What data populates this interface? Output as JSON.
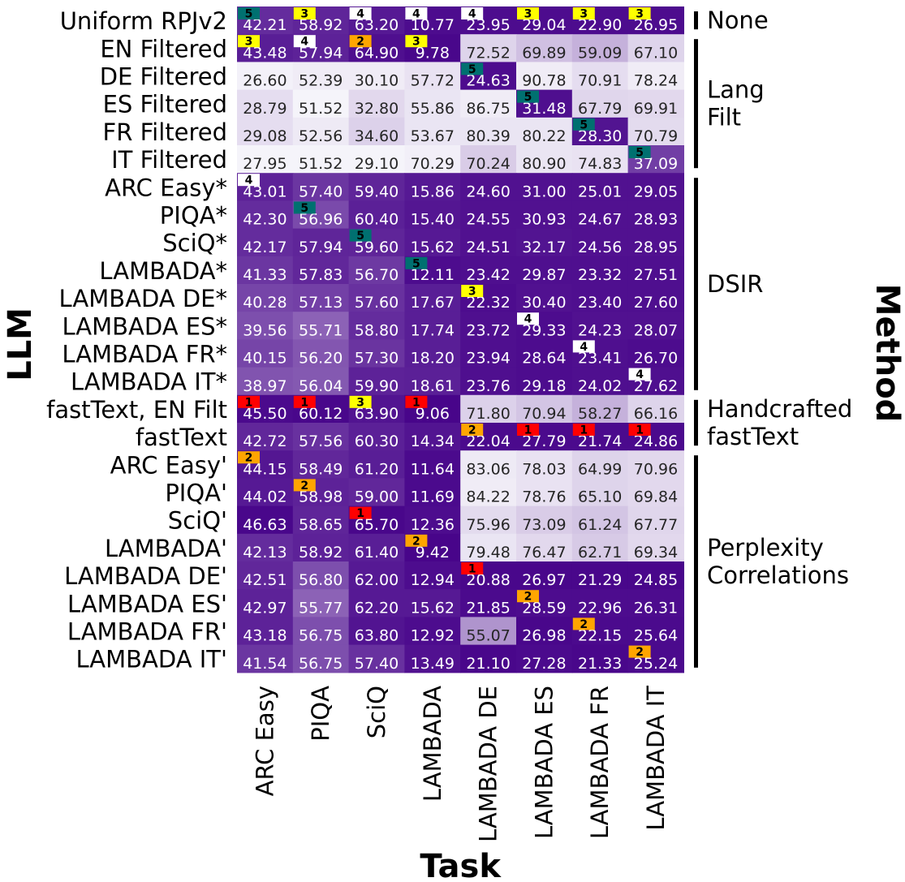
{
  "chart_data": {
    "type": "heatmap",
    "xlabel": "Task",
    "ylabel": "LLM",
    "group_axis_label": "Method",
    "columns": [
      "ARC Easy",
      "PIQA",
      "SciQ",
      "LAMBADA",
      "LAMBADA DE",
      "LAMBADA ES",
      "LAMBADA FR",
      "LAMBADA IT"
    ],
    "rows": [
      {
        "label": "Uniform RPJv2",
        "values": [
          42.21,
          58.92,
          63.2,
          10.77,
          23.95,
          29.04,
          22.9,
          26.95
        ],
        "shade": [
          0.18,
          0.15,
          0.1,
          0.05,
          0.05,
          0.05,
          0.05,
          0.05
        ],
        "ranks": [
          5,
          3,
          4,
          4,
          4,
          3,
          3,
          3
        ]
      },
      {
        "label": "EN Filtered",
        "values": [
          43.48,
          57.94,
          64.9,
          9.78,
          72.52,
          69.89,
          59.09,
          67.1
        ],
        "shade": [
          0.12,
          0.14,
          0.06,
          0.03,
          0.86,
          0.78,
          0.72,
          0.86
        ],
        "ranks": [
          3,
          4,
          2,
          3,
          null,
          null,
          null,
          null
        ]
      },
      {
        "label": "DE Filtered",
        "values": [
          26.6,
          52.39,
          30.1,
          57.72,
          24.63,
          90.78,
          70.91,
          78.24
        ],
        "shade": [
          0.98,
          0.96,
          0.96,
          0.92,
          0.05,
          0.96,
          0.9,
          0.96
        ],
        "ranks": [
          null,
          null,
          null,
          null,
          5,
          null,
          null,
          null
        ]
      },
      {
        "label": "ES Filtered",
        "values": [
          28.79,
          51.52,
          32.8,
          55.86,
          86.75,
          31.48,
          67.79,
          69.91
        ],
        "shade": [
          0.9,
          0.99,
          0.88,
          0.93,
          0.96,
          0.06,
          0.87,
          0.88
        ],
        "ranks": [
          null,
          null,
          null,
          null,
          null,
          5,
          null,
          null
        ]
      },
      {
        "label": "FR Filtered",
        "values": [
          29.08,
          52.56,
          34.6,
          53.67,
          80.39,
          80.22,
          28.3,
          70.79
        ],
        "shade": [
          0.9,
          0.95,
          0.85,
          0.93,
          0.93,
          0.93,
          0.08,
          0.89
        ],
        "ranks": [
          null,
          null,
          null,
          null,
          null,
          null,
          5,
          null
        ]
      },
      {
        "label": "IT Filtered",
        "values": [
          27.95,
          51.52,
          29.1,
          70.29,
          70.24,
          80.9,
          74.83,
          37.09
        ],
        "shade": [
          0.99,
          0.99,
          0.99,
          0.97,
          0.83,
          0.93,
          0.92,
          0.25
        ],
        "ranks": [
          null,
          null,
          null,
          null,
          null,
          null,
          null,
          5
        ]
      },
      {
        "label": "ARC Easy*",
        "values": [
          43.01,
          57.4,
          59.4,
          15.86,
          24.6,
          31.0,
          25.01,
          29.05
        ],
        "shade": [
          0.14,
          0.22,
          0.15,
          0.1,
          0.07,
          0.07,
          0.07,
          0.07
        ],
        "ranks": [
          4,
          null,
          null,
          null,
          null,
          null,
          null,
          null
        ]
      },
      {
        "label": "PIQA*",
        "values": [
          42.3,
          56.96,
          60.4,
          15.4,
          24.55,
          30.93,
          24.67,
          28.93
        ],
        "shade": [
          0.18,
          0.3,
          0.13,
          0.09,
          0.07,
          0.07,
          0.07,
          0.07
        ],
        "ranks": [
          null,
          5,
          null,
          null,
          null,
          null,
          null,
          null
        ]
      },
      {
        "label": "SciQ*",
        "values": [
          42.17,
          57.94,
          59.6,
          15.62,
          24.51,
          32.17,
          24.56,
          28.95
        ],
        "shade": [
          0.18,
          0.15,
          0.15,
          0.1,
          0.07,
          0.08,
          0.07,
          0.07
        ],
        "ranks": [
          null,
          null,
          5,
          null,
          null,
          null,
          null,
          null
        ]
      },
      {
        "label": "LAMBADA*",
        "values": [
          41.33,
          57.83,
          56.7,
          12.11,
          23.42,
          29.87,
          23.32,
          27.51
        ],
        "shade": [
          0.22,
          0.16,
          0.23,
          0.05,
          0.06,
          0.06,
          0.06,
          0.06
        ],
        "ranks": [
          null,
          null,
          null,
          5,
          null,
          null,
          null,
          null
        ]
      },
      {
        "label": "LAMBADA DE*",
        "values": [
          40.28,
          57.13,
          57.6,
          17.67,
          22.32,
          30.4,
          23.4,
          27.6
        ],
        "shade": [
          0.28,
          0.26,
          0.2,
          0.12,
          0.05,
          0.07,
          0.06,
          0.06
        ],
        "ranks": [
          null,
          null,
          null,
          null,
          3,
          null,
          null,
          null
        ]
      },
      {
        "label": "LAMBADA ES*",
        "values": [
          39.56,
          55.71,
          58.8,
          17.74,
          23.72,
          29.33,
          24.23,
          28.07
        ],
        "shade": [
          0.32,
          0.4,
          0.18,
          0.12,
          0.06,
          0.05,
          0.07,
          0.07
        ],
        "ranks": [
          null,
          null,
          null,
          null,
          null,
          4,
          null,
          null
        ]
      },
      {
        "label": "LAMBADA FR*",
        "values": [
          40.15,
          56.2,
          57.3,
          18.2,
          23.94,
          28.64,
          23.41,
          26.7
        ],
        "shade": [
          0.28,
          0.35,
          0.21,
          0.12,
          0.06,
          0.05,
          0.06,
          0.05
        ],
        "ranks": [
          null,
          null,
          null,
          null,
          null,
          null,
          4,
          null
        ]
      },
      {
        "label": "LAMBADA IT*",
        "values": [
          38.97,
          56.04,
          59.9,
          18.61,
          23.76,
          29.18,
          24.02,
          27.62
        ],
        "shade": [
          0.34,
          0.36,
          0.14,
          0.13,
          0.06,
          0.05,
          0.06,
          0.06
        ],
        "ranks": [
          null,
          null,
          null,
          null,
          null,
          null,
          null,
          4
        ]
      },
      {
        "label": "fastText, EN Filt",
        "values": [
          45.5,
          60.12,
          63.9,
          9.06,
          71.8,
          70.94,
          58.27,
          66.16
        ],
        "shade": [
          0.04,
          0.03,
          0.08,
          0.02,
          0.85,
          0.8,
          0.72,
          0.86
        ],
        "ranks": [
          1,
          1,
          3,
          1,
          null,
          null,
          null,
          null
        ]
      },
      {
        "label": "fastText",
        "values": [
          42.72,
          57.56,
          60.3,
          14.34,
          22.04,
          27.79,
          21.74,
          24.86
        ],
        "shade": [
          0.16,
          0.2,
          0.13,
          0.08,
          0.04,
          0.04,
          0.04,
          0.04
        ],
        "ranks": [
          null,
          null,
          null,
          null,
          2,
          1,
          1,
          1
        ]
      },
      {
        "label": "ARC Easy'",
        "values": [
          44.15,
          58.49,
          61.2,
          11.64,
          83.06,
          78.03,
          64.99,
          70.96
        ],
        "shade": [
          0.09,
          0.16,
          0.12,
          0.04,
          0.95,
          0.92,
          0.86,
          0.88
        ],
        "ranks": [
          2,
          null,
          null,
          null,
          null,
          null,
          null,
          null
        ]
      },
      {
        "label": "PIQA'",
        "values": [
          44.02,
          58.98,
          59.0,
          11.69,
          84.22,
          78.76,
          65.1,
          69.84
        ],
        "shade": [
          0.1,
          0.14,
          0.16,
          0.04,
          0.96,
          0.92,
          0.86,
          0.88
        ],
        "ranks": [
          null,
          2,
          null,
          null,
          null,
          null,
          null,
          null
        ]
      },
      {
        "label": "SciQ'",
        "values": [
          46.63,
          58.65,
          65.7,
          12.36,
          75.96,
          73.09,
          61.24,
          67.77
        ],
        "shade": [
          0.03,
          0.15,
          0.03,
          0.05,
          0.89,
          0.83,
          0.8,
          0.87
        ],
        "ranks": [
          null,
          null,
          1,
          null,
          null,
          null,
          null,
          null
        ]
      },
      {
        "label": "LAMBADA'",
        "values": [
          42.13,
          58.92,
          61.4,
          9.42,
          79.48,
          76.47,
          62.71,
          69.34
        ],
        "shade": [
          0.18,
          0.14,
          0.12,
          0.02,
          0.93,
          0.88,
          0.82,
          0.88
        ],
        "ranks": [
          null,
          null,
          null,
          2,
          null,
          null,
          null,
          null
        ]
      },
      {
        "label": "LAMBADA DE'",
        "values": [
          42.51,
          56.8,
          62.0,
          12.94,
          20.88,
          26.97,
          21.29,
          24.85
        ],
        "shade": [
          0.16,
          0.32,
          0.1,
          0.05,
          0.03,
          0.03,
          0.03,
          0.03
        ],
        "ranks": [
          null,
          null,
          null,
          null,
          1,
          null,
          null,
          null
        ]
      },
      {
        "label": "LAMBADA ES'",
        "values": [
          42.97,
          55.77,
          62.2,
          15.62,
          21.85,
          28.59,
          22.96,
          26.31
        ],
        "shade": [
          0.14,
          0.4,
          0.1,
          0.1,
          0.04,
          0.05,
          0.05,
          0.05
        ],
        "ranks": [
          null,
          null,
          null,
          null,
          null,
          2,
          null,
          null
        ]
      },
      {
        "label": "LAMBADA FR'",
        "values": [
          43.18,
          56.75,
          63.8,
          12.92,
          55.07,
          26.98,
          22.15,
          25.64
        ],
        "shade": [
          0.14,
          0.32,
          0.08,
          0.05,
          0.6,
          0.03,
          0.04,
          0.04
        ],
        "ranks": [
          null,
          null,
          null,
          null,
          null,
          null,
          2,
          null
        ]
      },
      {
        "label": "LAMBADA IT'",
        "values": [
          41.54,
          56.75,
          57.4,
          13.49,
          21.1,
          27.28,
          21.33,
          25.24
        ],
        "shade": [
          0.22,
          0.32,
          0.2,
          0.07,
          0.03,
          0.04,
          0.03,
          0.04
        ],
        "ranks": [
          null,
          null,
          null,
          null,
          null,
          null,
          null,
          2
        ]
      }
    ],
    "groups": [
      {
        "label": "None",
        "first_row": 0,
        "last_row": 0
      },
      {
        "label": "Lang Filt",
        "first_row": 1,
        "last_row": 5
      },
      {
        "label": "DSIR",
        "first_row": 6,
        "last_row": 13
      },
      {
        "label": "Handcrafted fastText",
        "first_row": 14,
        "last_row": 15
      },
      {
        "label": "Perplexity Correlations",
        "first_row": 16,
        "last_row": 23
      }
    ],
    "rank_colors": {
      "1": "#ff0000",
      "2": "#ffa500",
      "3": "#ffff00",
      "4": "#ffffff",
      "5": "#007070"
    },
    "colormap": {
      "low": "#440088",
      "high": "#f7f6fb"
    }
  }
}
